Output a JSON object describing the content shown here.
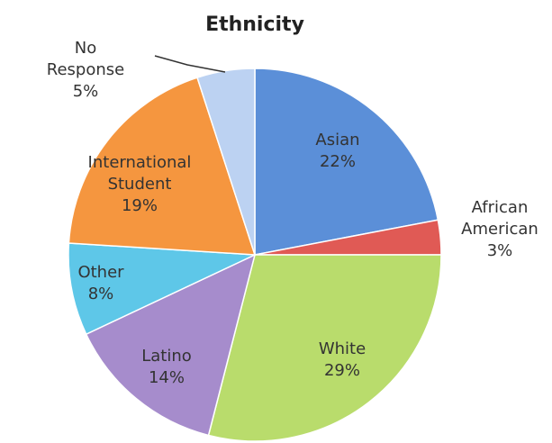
{
  "chart_data": {
    "type": "pie",
    "title": "Ethnicity",
    "categories": [
      "Asian",
      "African American",
      "White",
      "Latino",
      "Other",
      "International Student",
      "No Response"
    ],
    "values": [
      22,
      3,
      29,
      14,
      8,
      19,
      5
    ],
    "value_labels": [
      "22%",
      "3%",
      "29%",
      "14%",
      "8%",
      "19%",
      "5%"
    ],
    "colors": [
      "#5b8fd8",
      "#e05a55",
      "#b9dc6c",
      "#a68ccc",
      "#5ec7e8",
      "#f5963f",
      "#bcd2f2"
    ]
  }
}
